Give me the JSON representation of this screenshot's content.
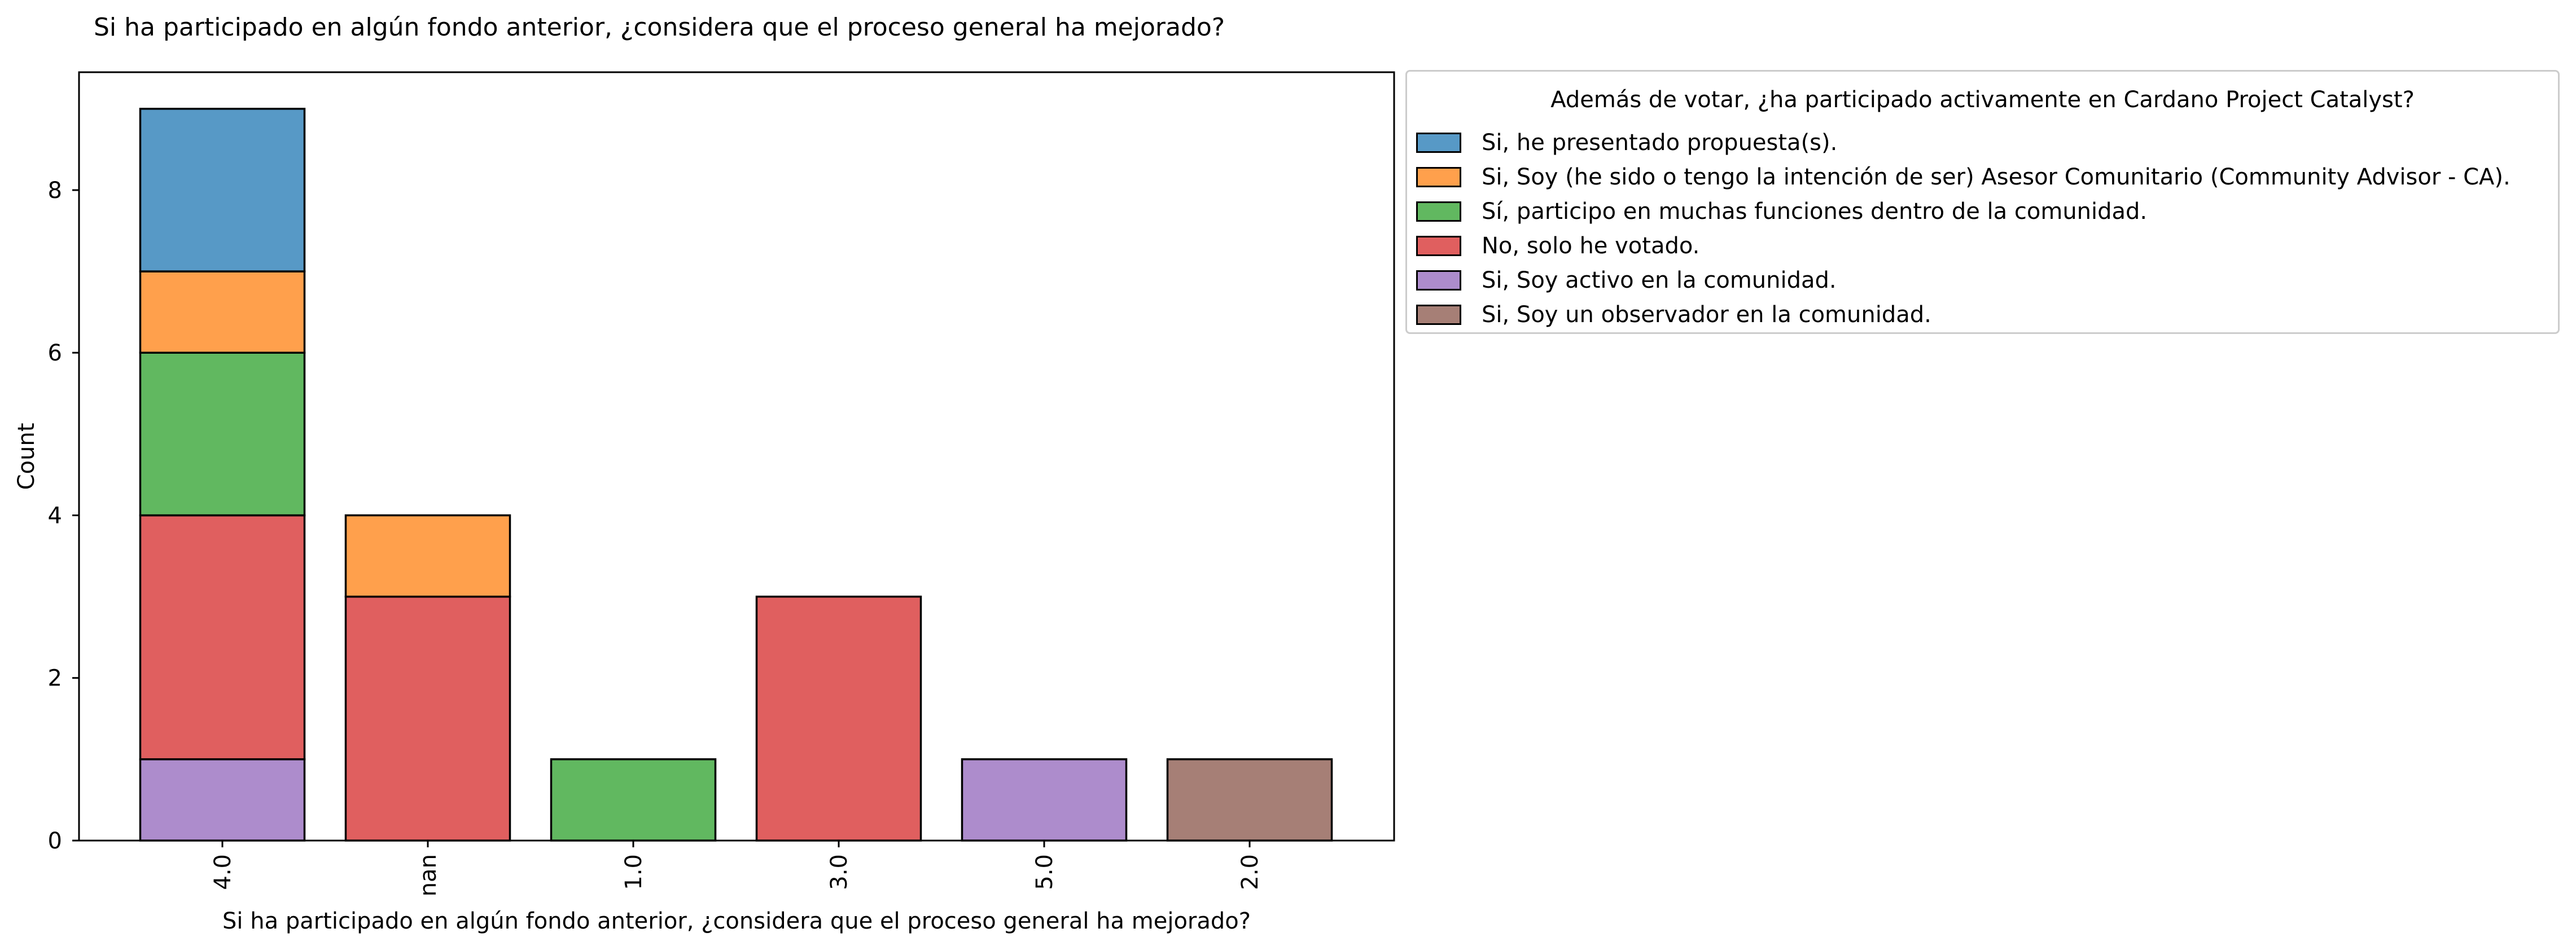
{
  "chart_data": {
    "type": "bar",
    "stacked": true,
    "title": "Si ha participado en algún fondo anterior, ¿considera que el proceso general ha mejorado?",
    "xlabel": "Si ha participado en algún fondo anterior, ¿considera que el proceso general ha mejorado?",
    "ylabel": "Count",
    "categories": [
      "4.0",
      "nan",
      "1.0",
      "3.0",
      "5.0",
      "2.0"
    ],
    "ylim": [
      0,
      9.45
    ],
    "yticks": [
      "0",
      "2",
      "4",
      "6",
      "8"
    ],
    "ytick_values": [
      0,
      2,
      4,
      6,
      8
    ],
    "grid": false,
    "legend": {
      "title": "Además de votar, ¿ha participado activamente en Cardano Project Catalyst?",
      "placement": "outside-right-top"
    },
    "series": [
      {
        "name": "Si, he presentado propuesta(s).",
        "color": "#5799c6",
        "values": [
          2,
          0,
          0,
          0,
          0,
          0
        ]
      },
      {
        "name": "Si, Soy (he sido o tengo la intención de ser) Asesor Comunitario (Community Advisor - CA).",
        "color": "#ffa04c",
        "values": [
          1,
          1,
          0,
          0,
          0,
          0
        ]
      },
      {
        "name": "Sí, participo en muchas funciones dentro de la comunidad.",
        "color": "#61b860",
        "values": [
          2,
          0,
          1,
          0,
          0,
          0
        ]
      },
      {
        "name": "No, solo he votado.",
        "color": "#e05f5f",
        "values": [
          3,
          3,
          0,
          3,
          0,
          0
        ]
      },
      {
        "name": "Si, Soy activo en la comunidad.",
        "color": "#ad8ccc",
        "values": [
          1,
          0,
          0,
          0,
          1,
          0
        ]
      },
      {
        "name": "Si, Soy un observador en la comunidad.",
        "color": "#a67f76",
        "values": [
          0,
          0,
          0,
          0,
          0,
          1
        ]
      }
    ],
    "stack_order_bottom_to_top": [
      4,
      3,
      2,
      1,
      0,
      5
    ]
  }
}
